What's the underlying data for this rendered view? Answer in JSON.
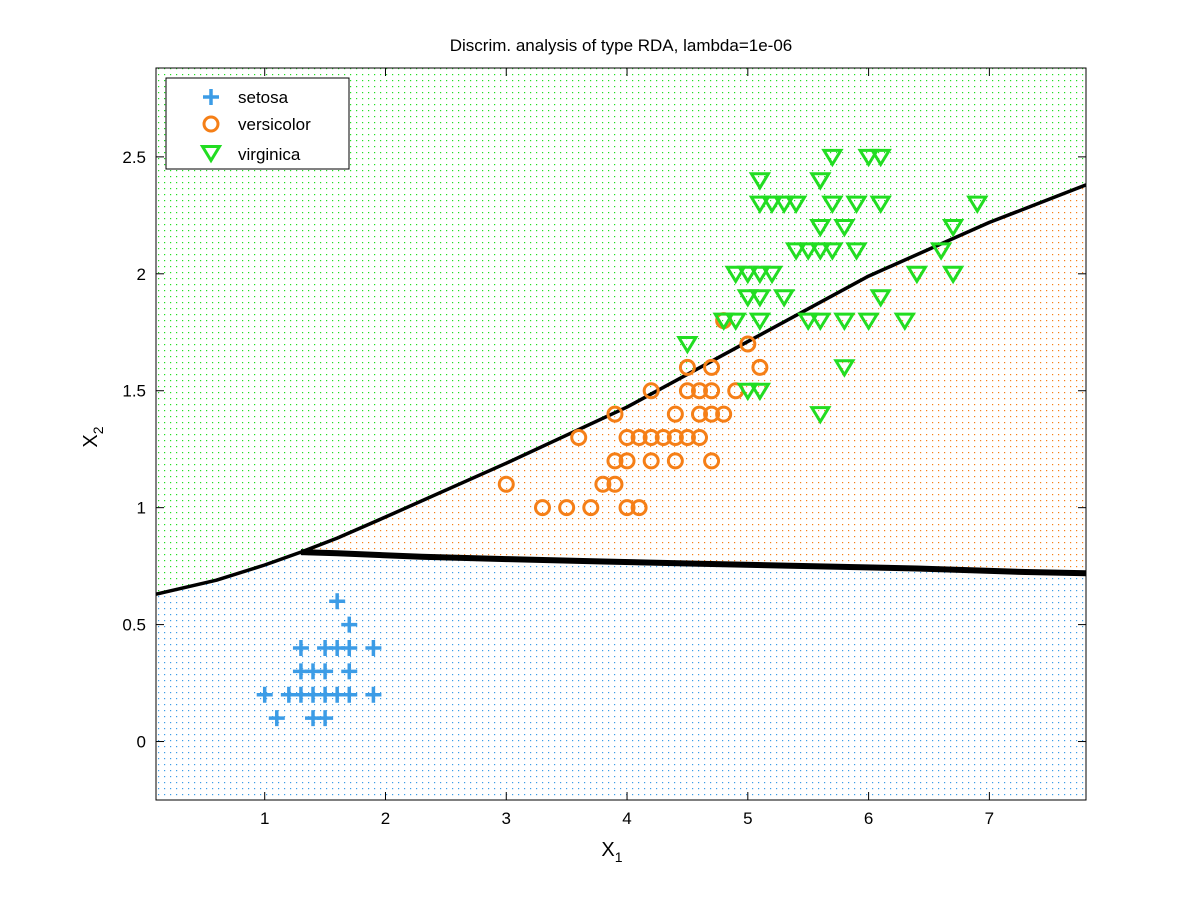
{
  "chart_data": {
    "type": "scatter",
    "title": "Discrim. analysis of type RDA, lambda=1e-06",
    "xlabel": {
      "main": "X",
      "sub": "1"
    },
    "ylabel": {
      "main": "X",
      "sub": "2"
    },
    "xlim": [
      0.1,
      7.8
    ],
    "ylim": [
      -0.25,
      2.88
    ],
    "xticks": [
      1,
      2,
      3,
      4,
      5,
      6,
      7
    ],
    "yticks": [
      0,
      0.5,
      1,
      1.5,
      2,
      2.5
    ],
    "xtick_labels": [
      "1",
      "2",
      "3",
      "4",
      "5",
      "6",
      "7"
    ],
    "ytick_labels": [
      "0",
      "0.5",
      "1",
      "1.5",
      "2",
      "2.5"
    ],
    "grid": false,
    "background_regions": true,
    "legend": {
      "position": "top-left"
    },
    "series": [
      {
        "name": "setosa",
        "marker": "plus",
        "color": "#3c9ce6",
        "points": [
          [
            1.0,
            0.2
          ],
          [
            1.1,
            0.1
          ],
          [
            1.2,
            0.2
          ],
          [
            1.3,
            0.2
          ],
          [
            1.3,
            0.3
          ],
          [
            1.3,
            0.4
          ],
          [
            1.4,
            0.1
          ],
          [
            1.4,
            0.2
          ],
          [
            1.4,
            0.3
          ],
          [
            1.5,
            0.1
          ],
          [
            1.5,
            0.2
          ],
          [
            1.5,
            0.3
          ],
          [
            1.5,
            0.4
          ],
          [
            1.6,
            0.2
          ],
          [
            1.6,
            0.4
          ],
          [
            1.6,
            0.6
          ],
          [
            1.7,
            0.2
          ],
          [
            1.7,
            0.3
          ],
          [
            1.7,
            0.4
          ],
          [
            1.7,
            0.5
          ],
          [
            1.9,
            0.2
          ],
          [
            1.9,
            0.4
          ]
        ]
      },
      {
        "name": "versicolor",
        "marker": "circle",
        "color": "#f57f17",
        "points": [
          [
            3.0,
            1.1
          ],
          [
            3.3,
            1.0
          ],
          [
            3.5,
            1.0
          ],
          [
            3.6,
            1.3
          ],
          [
            3.7,
            1.0
          ],
          [
            3.8,
            1.1
          ],
          [
            3.9,
            1.1
          ],
          [
            3.9,
            1.2
          ],
          [
            3.9,
            1.4
          ],
          [
            4.0,
            1.0
          ],
          [
            4.0,
            1.2
          ],
          [
            4.0,
            1.3
          ],
          [
            4.1,
            1.0
          ],
          [
            4.1,
            1.3
          ],
          [
            4.2,
            1.2
          ],
          [
            4.2,
            1.3
          ],
          [
            4.2,
            1.5
          ],
          [
            4.3,
            1.3
          ],
          [
            4.4,
            1.2
          ],
          [
            4.4,
            1.3
          ],
          [
            4.4,
            1.4
          ],
          [
            4.5,
            1.3
          ],
          [
            4.5,
            1.5
          ],
          [
            4.5,
            1.6
          ],
          [
            4.6,
            1.3
          ],
          [
            4.6,
            1.4
          ],
          [
            4.6,
            1.5
          ],
          [
            4.7,
            1.2
          ],
          [
            4.7,
            1.4
          ],
          [
            4.7,
            1.5
          ],
          [
            4.7,
            1.6
          ],
          [
            4.8,
            1.4
          ],
          [
            4.8,
            1.8
          ],
          [
            4.9,
            1.5
          ],
          [
            5.0,
            1.7
          ],
          [
            5.1,
            1.6
          ]
        ]
      },
      {
        "name": "virginica",
        "marker": "triangle-down",
        "color": "#22dd22",
        "points": [
          [
            4.5,
            1.7
          ],
          [
            4.8,
            1.8
          ],
          [
            4.9,
            1.8
          ],
          [
            4.9,
            2.0
          ],
          [
            5.0,
            1.5
          ],
          [
            5.0,
            1.9
          ],
          [
            5.0,
            2.0
          ],
          [
            5.1,
            1.5
          ],
          [
            5.1,
            1.8
          ],
          [
            5.1,
            1.9
          ],
          [
            5.1,
            2.0
          ],
          [
            5.1,
            2.3
          ],
          [
            5.1,
            2.4
          ],
          [
            5.2,
            2.0
          ],
          [
            5.2,
            2.3
          ],
          [
            5.3,
            1.9
          ],
          [
            5.3,
            2.3
          ],
          [
            5.4,
            2.1
          ],
          [
            5.4,
            2.3
          ],
          [
            5.5,
            1.8
          ],
          [
            5.5,
            2.1
          ],
          [
            5.6,
            1.4
          ],
          [
            5.6,
            1.8
          ],
          [
            5.6,
            2.1
          ],
          [
            5.6,
            2.2
          ],
          [
            5.6,
            2.4
          ],
          [
            5.7,
            2.1
          ],
          [
            5.7,
            2.3
          ],
          [
            5.7,
            2.5
          ],
          [
            5.8,
            1.6
          ],
          [
            5.8,
            1.8
          ],
          [
            5.8,
            2.2
          ],
          [
            5.9,
            2.1
          ],
          [
            5.9,
            2.3
          ],
          [
            6.0,
            1.8
          ],
          [
            6.0,
            2.5
          ],
          [
            6.1,
            1.9
          ],
          [
            6.1,
            2.3
          ],
          [
            6.1,
            2.5
          ],
          [
            6.3,
            1.8
          ],
          [
            6.4,
            2.0
          ],
          [
            6.6,
            2.1
          ],
          [
            6.7,
            2.0
          ],
          [
            6.7,
            2.2
          ],
          [
            6.9,
            2.3
          ]
        ]
      }
    ],
    "boundaries": [
      {
        "name": "",
        "color": "#000000",
        "points": [
          [
            0.1,
            0.63
          ],
          [
            0.6,
            0.69
          ],
          [
            1.0,
            0.755
          ],
          [
            1.3,
            0.81
          ],
          [
            1.6,
            0.87
          ],
          [
            2.0,
            0.96
          ],
          [
            3.0,
            1.19
          ],
          [
            4.0,
            1.43
          ],
          [
            5.0,
            1.71
          ],
          [
            6.0,
            1.99
          ],
          [
            7.0,
            2.22
          ],
          [
            7.8,
            2.38
          ]
        ]
      },
      {
        "name": "",
        "color": "#000000",
        "points": [
          [
            1.3,
            0.81
          ],
          [
            1.6,
            0.805
          ],
          [
            2.3,
            0.79
          ],
          [
            3.0,
            0.78
          ],
          [
            3.8,
            0.77
          ],
          [
            4.6,
            0.76
          ],
          [
            5.5,
            0.75
          ],
          [
            6.4,
            0.74
          ],
          [
            7.3,
            0.725
          ],
          [
            7.8,
            0.72
          ]
        ]
      }
    ],
    "regions": [
      {
        "class": "setosa",
        "color": "#3c9ce6"
      },
      {
        "class": "versicolor",
        "color": "#f57f17"
      },
      {
        "class": "virginica",
        "color": "#22dd22"
      }
    ]
  }
}
